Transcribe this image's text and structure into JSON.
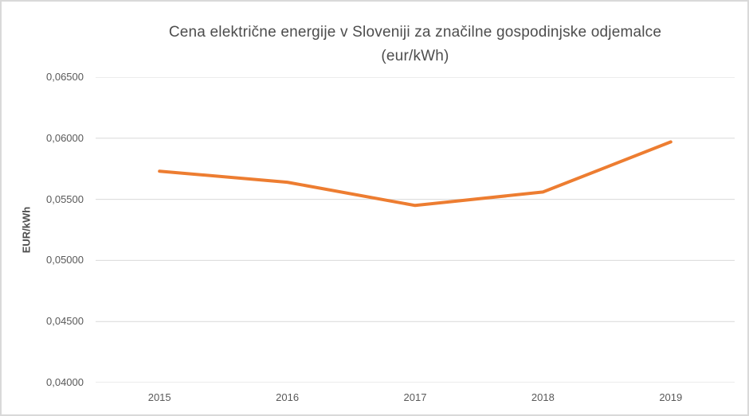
{
  "title": {
    "line1": "Cena električne energije v Sloveniji za značilne gospodinjske odjemalce",
    "line2": "(eur/kWh)"
  },
  "y_axis": {
    "label": "EUR/kWh",
    "tick_labels": [
      "0,06500",
      "0,06000",
      "0,05500",
      "0,05000",
      "0,04500",
      "0,04000"
    ]
  },
  "x_axis": {
    "tick_labels": [
      "2015",
      "2016",
      "2017",
      "2018",
      "2019"
    ]
  },
  "chart_data": {
    "type": "line",
    "title": "Cena električne energije v Sloveniji za značilne gospodinjske odjemalce (eur/kWh)",
    "categories": [
      "2015",
      "2016",
      "2017",
      "2018",
      "2019"
    ],
    "values": [
      0.0573,
      0.0564,
      0.0545,
      0.0556,
      0.0597
    ],
    "xlabel": "",
    "ylabel": "EUR/kWh",
    "ylim": [
      0.04,
      0.065
    ],
    "y_step": 0.005,
    "grid": true,
    "legend": false
  },
  "colors": {
    "line": "#ED7D31",
    "grid": "#D9D9D9",
    "tick_text": "#595959",
    "title_text": "#4D4D4D",
    "frame_border": "#D9D9D9",
    "background": "#FFFFFF"
  }
}
